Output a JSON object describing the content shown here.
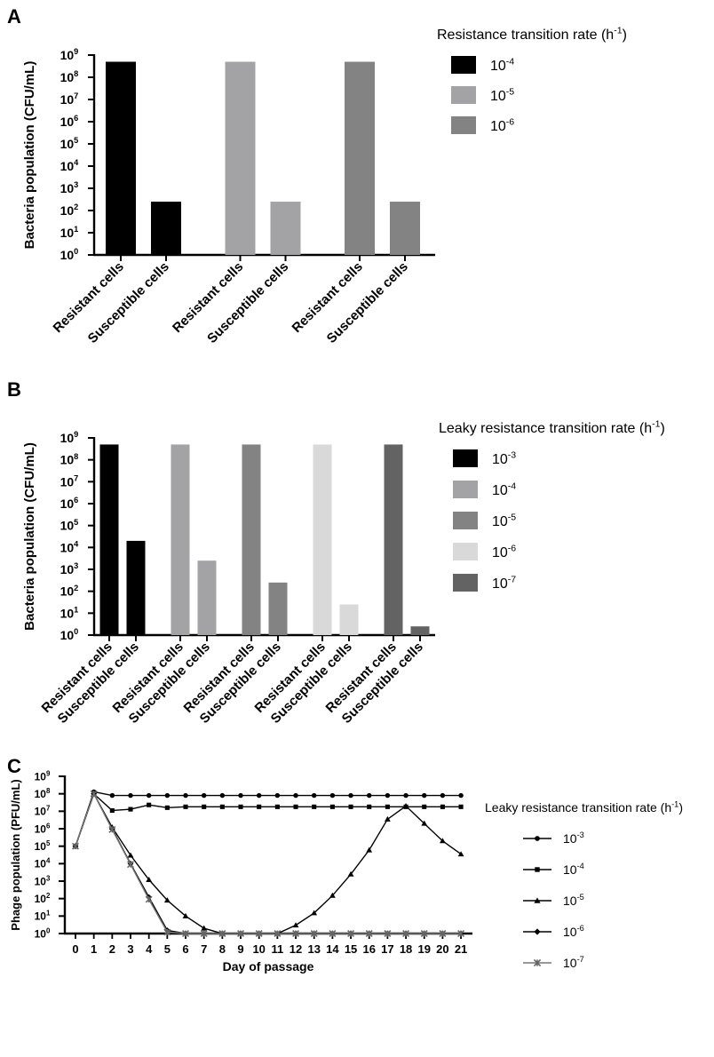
{
  "chart_data": [
    {
      "panel": "A",
      "type": "bar",
      "ylabel": "Bacteria population (CFU/mL)",
      "yscale": "log",
      "ylim": [
        1,
        1000000000
      ],
      "yticks": [
        {
          "value": 1,
          "base": "10",
          "exp": "0"
        },
        {
          "value": 10,
          "base": "10",
          "exp": "1"
        },
        {
          "value": 100,
          "base": "10",
          "exp": "2"
        },
        {
          "value": 1000,
          "base": "10",
          "exp": "3"
        },
        {
          "value": 10000,
          "base": "10",
          "exp": "4"
        },
        {
          "value": 100000,
          "base": "10",
          "exp": "5"
        },
        {
          "value": 1000000,
          "base": "10",
          "exp": "6"
        },
        {
          "value": 10000000,
          "base": "10",
          "exp": "7"
        },
        {
          "value": 100000000,
          "base": "10",
          "exp": "8"
        },
        {
          "value": 1000000000,
          "base": "10",
          "exp": "9"
        }
      ],
      "legend_title": {
        "text": "Resistance transition rate (h",
        "sup": "-1",
        "tail": ")"
      },
      "legend_position": "right",
      "groups": [
        {
          "legend": {
            "base": "10",
            "exp": "-4"
          },
          "color": "#000000",
          "bars": [
            {
              "label": "Resistant cells",
              "value": 500000000
            },
            {
              "label": "Susceptible cells",
              "value": 250
            }
          ]
        },
        {
          "legend": {
            "base": "10",
            "exp": "-5"
          },
          "color": "#a3a3a6",
          "bars": [
            {
              "label": "Resistant cells",
              "value": 500000000
            },
            {
              "label": "Susceptible cells",
              "value": 250
            }
          ]
        },
        {
          "legend": {
            "base": "10",
            "exp": "-6"
          },
          "color": "#838383",
          "bars": [
            {
              "label": "Resistant cells",
              "value": 500000000
            },
            {
              "label": "Susceptible cells",
              "value": 250
            }
          ]
        }
      ]
    },
    {
      "panel": "B",
      "type": "bar",
      "ylabel": "Bacteria population (CFU/mL)",
      "yscale": "log",
      "ylim": [
        1,
        1000000000
      ],
      "yticks": [
        {
          "value": 1,
          "base": "10",
          "exp": "0"
        },
        {
          "value": 10,
          "base": "10",
          "exp": "1"
        },
        {
          "value": 100,
          "base": "10",
          "exp": "2"
        },
        {
          "value": 1000,
          "base": "10",
          "exp": "3"
        },
        {
          "value": 10000,
          "base": "10",
          "exp": "4"
        },
        {
          "value": 100000,
          "base": "10",
          "exp": "5"
        },
        {
          "value": 1000000,
          "base": "10",
          "exp": "6"
        },
        {
          "value": 10000000,
          "base": "10",
          "exp": "7"
        },
        {
          "value": 100000000,
          "base": "10",
          "exp": "8"
        },
        {
          "value": 1000000000,
          "base": "10",
          "exp": "9"
        }
      ],
      "legend_title": {
        "text": "Leaky resistance transition rate (h",
        "sup": "-1",
        "tail": ")"
      },
      "legend_position": "right",
      "groups": [
        {
          "legend": {
            "base": "10",
            "exp": "-3"
          },
          "color": "#000000",
          "bars": [
            {
              "label": "Resistant cells",
              "value": 500000000
            },
            {
              "label": "Susceptible cells",
              "value": 20000
            }
          ]
        },
        {
          "legend": {
            "base": "10",
            "exp": "-4"
          },
          "color": "#a3a3a6",
          "bars": [
            {
              "label": "Resistant cells",
              "value": 500000000
            },
            {
              "label": "Susceptible cells",
              "value": 2500
            }
          ]
        },
        {
          "legend": {
            "base": "10",
            "exp": "-5"
          },
          "color": "#838383",
          "bars": [
            {
              "label": "Resistant cells",
              "value": 500000000
            },
            {
              "label": "Susceptible cells",
              "value": 250
            }
          ]
        },
        {
          "legend": {
            "base": "10",
            "exp": "-6"
          },
          "color": "#d9d9d9",
          "bars": [
            {
              "label": "Resistant cells",
              "value": 500000000
            },
            {
              "label": "Susceptible cells",
              "value": 25
            }
          ]
        },
        {
          "legend": {
            "base": "10",
            "exp": "-7"
          },
          "color": "#636363",
          "bars": [
            {
              "label": "Resistant cells",
              "value": 500000000
            },
            {
              "label": "Susceptible cells",
              "value": 2.5
            }
          ]
        }
      ]
    },
    {
      "panel": "C",
      "type": "line",
      "xlabel": "Day of passage",
      "ylabel": "Phage population (PFU/mL)",
      "yscale": "log",
      "ylim": [
        1,
        1000000000
      ],
      "xlim": [
        0,
        21
      ],
      "yticks": [
        {
          "value": 1,
          "base": "10",
          "exp": "0"
        },
        {
          "value": 10,
          "base": "10",
          "exp": "1"
        },
        {
          "value": 100,
          "base": "10",
          "exp": "2"
        },
        {
          "value": 1000,
          "base": "10",
          "exp": "3"
        },
        {
          "value": 10000,
          "base": "10",
          "exp": "4"
        },
        {
          "value": 100000,
          "base": "10",
          "exp": "5"
        },
        {
          "value": 1000000,
          "base": "10",
          "exp": "6"
        },
        {
          "value": 10000000,
          "base": "10",
          "exp": "7"
        },
        {
          "value": 100000000,
          "base": "10",
          "exp": "8"
        },
        {
          "value": 1000000000,
          "base": "10",
          "exp": "9"
        }
      ],
      "xticks": [
        0,
        1,
        2,
        3,
        4,
        5,
        6,
        7,
        8,
        9,
        10,
        11,
        12,
        13,
        14,
        15,
        16,
        17,
        18,
        19,
        20,
        21
      ],
      "legend_title": {
        "text": "Leaky resistance transition rate (h",
        "sup": "-1",
        "tail": ")"
      },
      "legend_position": "right",
      "series": [
        {
          "legend": {
            "base": "10",
            "exp": "-3"
          },
          "marker": "circle",
          "x": [
            0,
            1,
            2,
            3,
            4,
            5,
            6,
            7,
            8,
            9,
            10,
            11,
            12,
            13,
            14,
            15,
            16,
            17,
            18,
            19,
            20,
            21
          ],
          "y": [
            100000,
            130000000,
            80000000,
            80000000,
            80000000,
            80000000,
            80000000,
            80000000,
            80000000,
            80000000,
            80000000,
            80000000,
            80000000,
            80000000,
            80000000,
            80000000,
            80000000,
            80000000,
            80000000,
            80000000,
            80000000,
            80000000
          ]
        },
        {
          "legend": {
            "base": "10",
            "exp": "-4"
          },
          "marker": "square",
          "x": [
            0,
            1,
            2,
            3,
            4,
            5,
            6,
            7,
            8,
            9,
            10,
            11,
            12,
            13,
            14,
            15,
            16,
            17,
            18,
            19,
            20,
            21
          ],
          "y": [
            100000,
            100000000,
            11000000,
            13000000,
            23000000,
            16000000,
            18000000,
            18000000,
            18000000,
            18000000,
            18000000,
            18000000,
            18000000,
            18000000,
            18000000,
            18000000,
            18000000,
            18000000,
            18000000,
            18000000,
            18000000,
            18000000
          ]
        },
        {
          "legend": {
            "base": "10",
            "exp": "-5"
          },
          "marker": "triangle",
          "x": [
            0,
            1,
            2,
            3,
            4,
            5,
            6,
            7,
            8,
            9,
            10,
            11,
            12,
            13,
            14,
            15,
            16,
            17,
            18,
            19,
            20,
            21
          ],
          "y": [
            100000,
            100000000,
            1200000,
            30000,
            1200,
            80,
            10,
            2,
            1,
            1,
            1,
            1,
            3,
            15,
            150,
            2500,
            60000,
            3500000,
            20000000,
            2000000,
            200000,
            35000
          ]
        },
        {
          "legend": {
            "base": "10",
            "exp": "-6"
          },
          "marker": "diamond",
          "x": [
            0,
            1,
            2,
            3,
            4,
            5,
            6,
            7,
            8,
            9,
            10,
            11,
            12,
            13,
            14,
            15,
            16,
            17,
            18,
            19,
            20,
            21
          ],
          "y": [
            100000,
            100000000,
            1000000,
            10000,
            120,
            1.5,
            1,
            1,
            1,
            1,
            1,
            1,
            1,
            1,
            1,
            1,
            1,
            1,
            1,
            1,
            1,
            1
          ]
        },
        {
          "legend": {
            "base": "10",
            "exp": "-7"
          },
          "marker": "star",
          "x": [
            0,
            1,
            2,
            3,
            4,
            5,
            6,
            7,
            8,
            9,
            10,
            11,
            12,
            13,
            14,
            15,
            16,
            17,
            18,
            19,
            20,
            21
          ],
          "y": [
            100000,
            100000000,
            900000,
            9000,
            90,
            1.2,
            1,
            1,
            1,
            1,
            1,
            1,
            1,
            1,
            1,
            1,
            1,
            1,
            1,
            1,
            1,
            1
          ]
        }
      ]
    }
  ]
}
